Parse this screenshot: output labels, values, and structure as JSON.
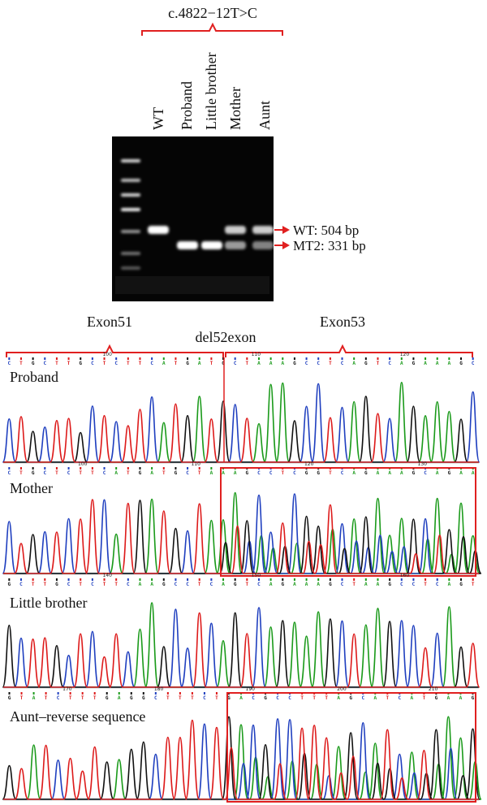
{
  "gel": {
    "variant_title": "c.4822−12T>C",
    "lanes": [
      "WT",
      "Proband",
      "Little brother",
      "Mother",
      "Aunt"
    ],
    "band_wt": "WT: 504 bp",
    "band_mt": "MT2: 331 bp",
    "lane_bands": [
      {
        "lane": "WT",
        "wt": 1.0,
        "mt": 0.0
      },
      {
        "lane": "Proband",
        "wt": 0.0,
        "mt": 1.0
      },
      {
        "lane": "Little brother",
        "wt": 0.0,
        "mt": 1.0
      },
      {
        "lane": "Mother",
        "wt": 0.8,
        "mt": 0.6
      },
      {
        "lane": "Aunt",
        "wt": 0.8,
        "mt": 0.5
      }
    ]
  },
  "sequencing": {
    "exon_left": "Exon51",
    "exon_center": "del52exon",
    "exon_right": "Exon53",
    "panels": [
      {
        "label": "Proband",
        "positions": [
          "100",
          "110",
          "120"
        ],
        "bases": "CTGCTTGCTCTTCATGATGCTAAAGCCTCAGTCAGAAAGC",
        "boxed": false
      },
      {
        "label": "Mother",
        "positions": [
          "100",
          "110",
          "120",
          "130"
        ],
        "bases": "CTGCTCTTCATGATGCTAAAGCCTCGGTCAGAAAGCAGAA",
        "boxed": true
      },
      {
        "label": "Little brother",
        "positions": [
          "140",
          "150",
          "160"
        ],
        "bases": "GCTTGCTCTTCAAGCCTCAGTCAGAAAGCTAAGCCTCAGT",
        "boxed": false
      },
      {
        "label": "Aunt–reverse sequence",
        "positions": [
          "170",
          "180",
          "190",
          "200",
          "210"
        ],
        "bases": "GTATCTTTGAGGCTTTCTGACGCCTTTAGCATCATGAAG",
        "boxed": true
      }
    ]
  },
  "colors": {
    "A": "#1a9a1a",
    "C": "#1f3fbf",
    "G": "#111111",
    "T": "#dd1a1a",
    "annot": "#e02020"
  }
}
